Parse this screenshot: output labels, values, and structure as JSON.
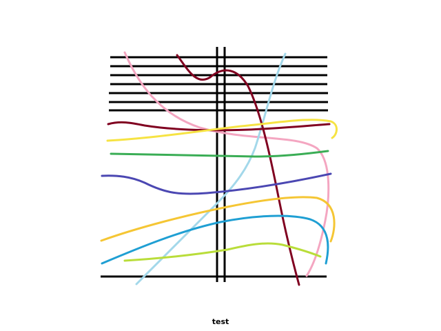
{
  "caption": "test",
  "colors": {
    "background": "#ffffff",
    "lines": "#000000",
    "maroon": "#800020",
    "pink": "#f4a6c1",
    "light_blue": "#a3d8ea",
    "yellow": "#f6e343",
    "gold": "#f5c634",
    "green": "#3aad55",
    "indigo": "#4b47b2",
    "cyan_blue": "#1f9fd3",
    "lime": "#b9dd3a"
  }
}
